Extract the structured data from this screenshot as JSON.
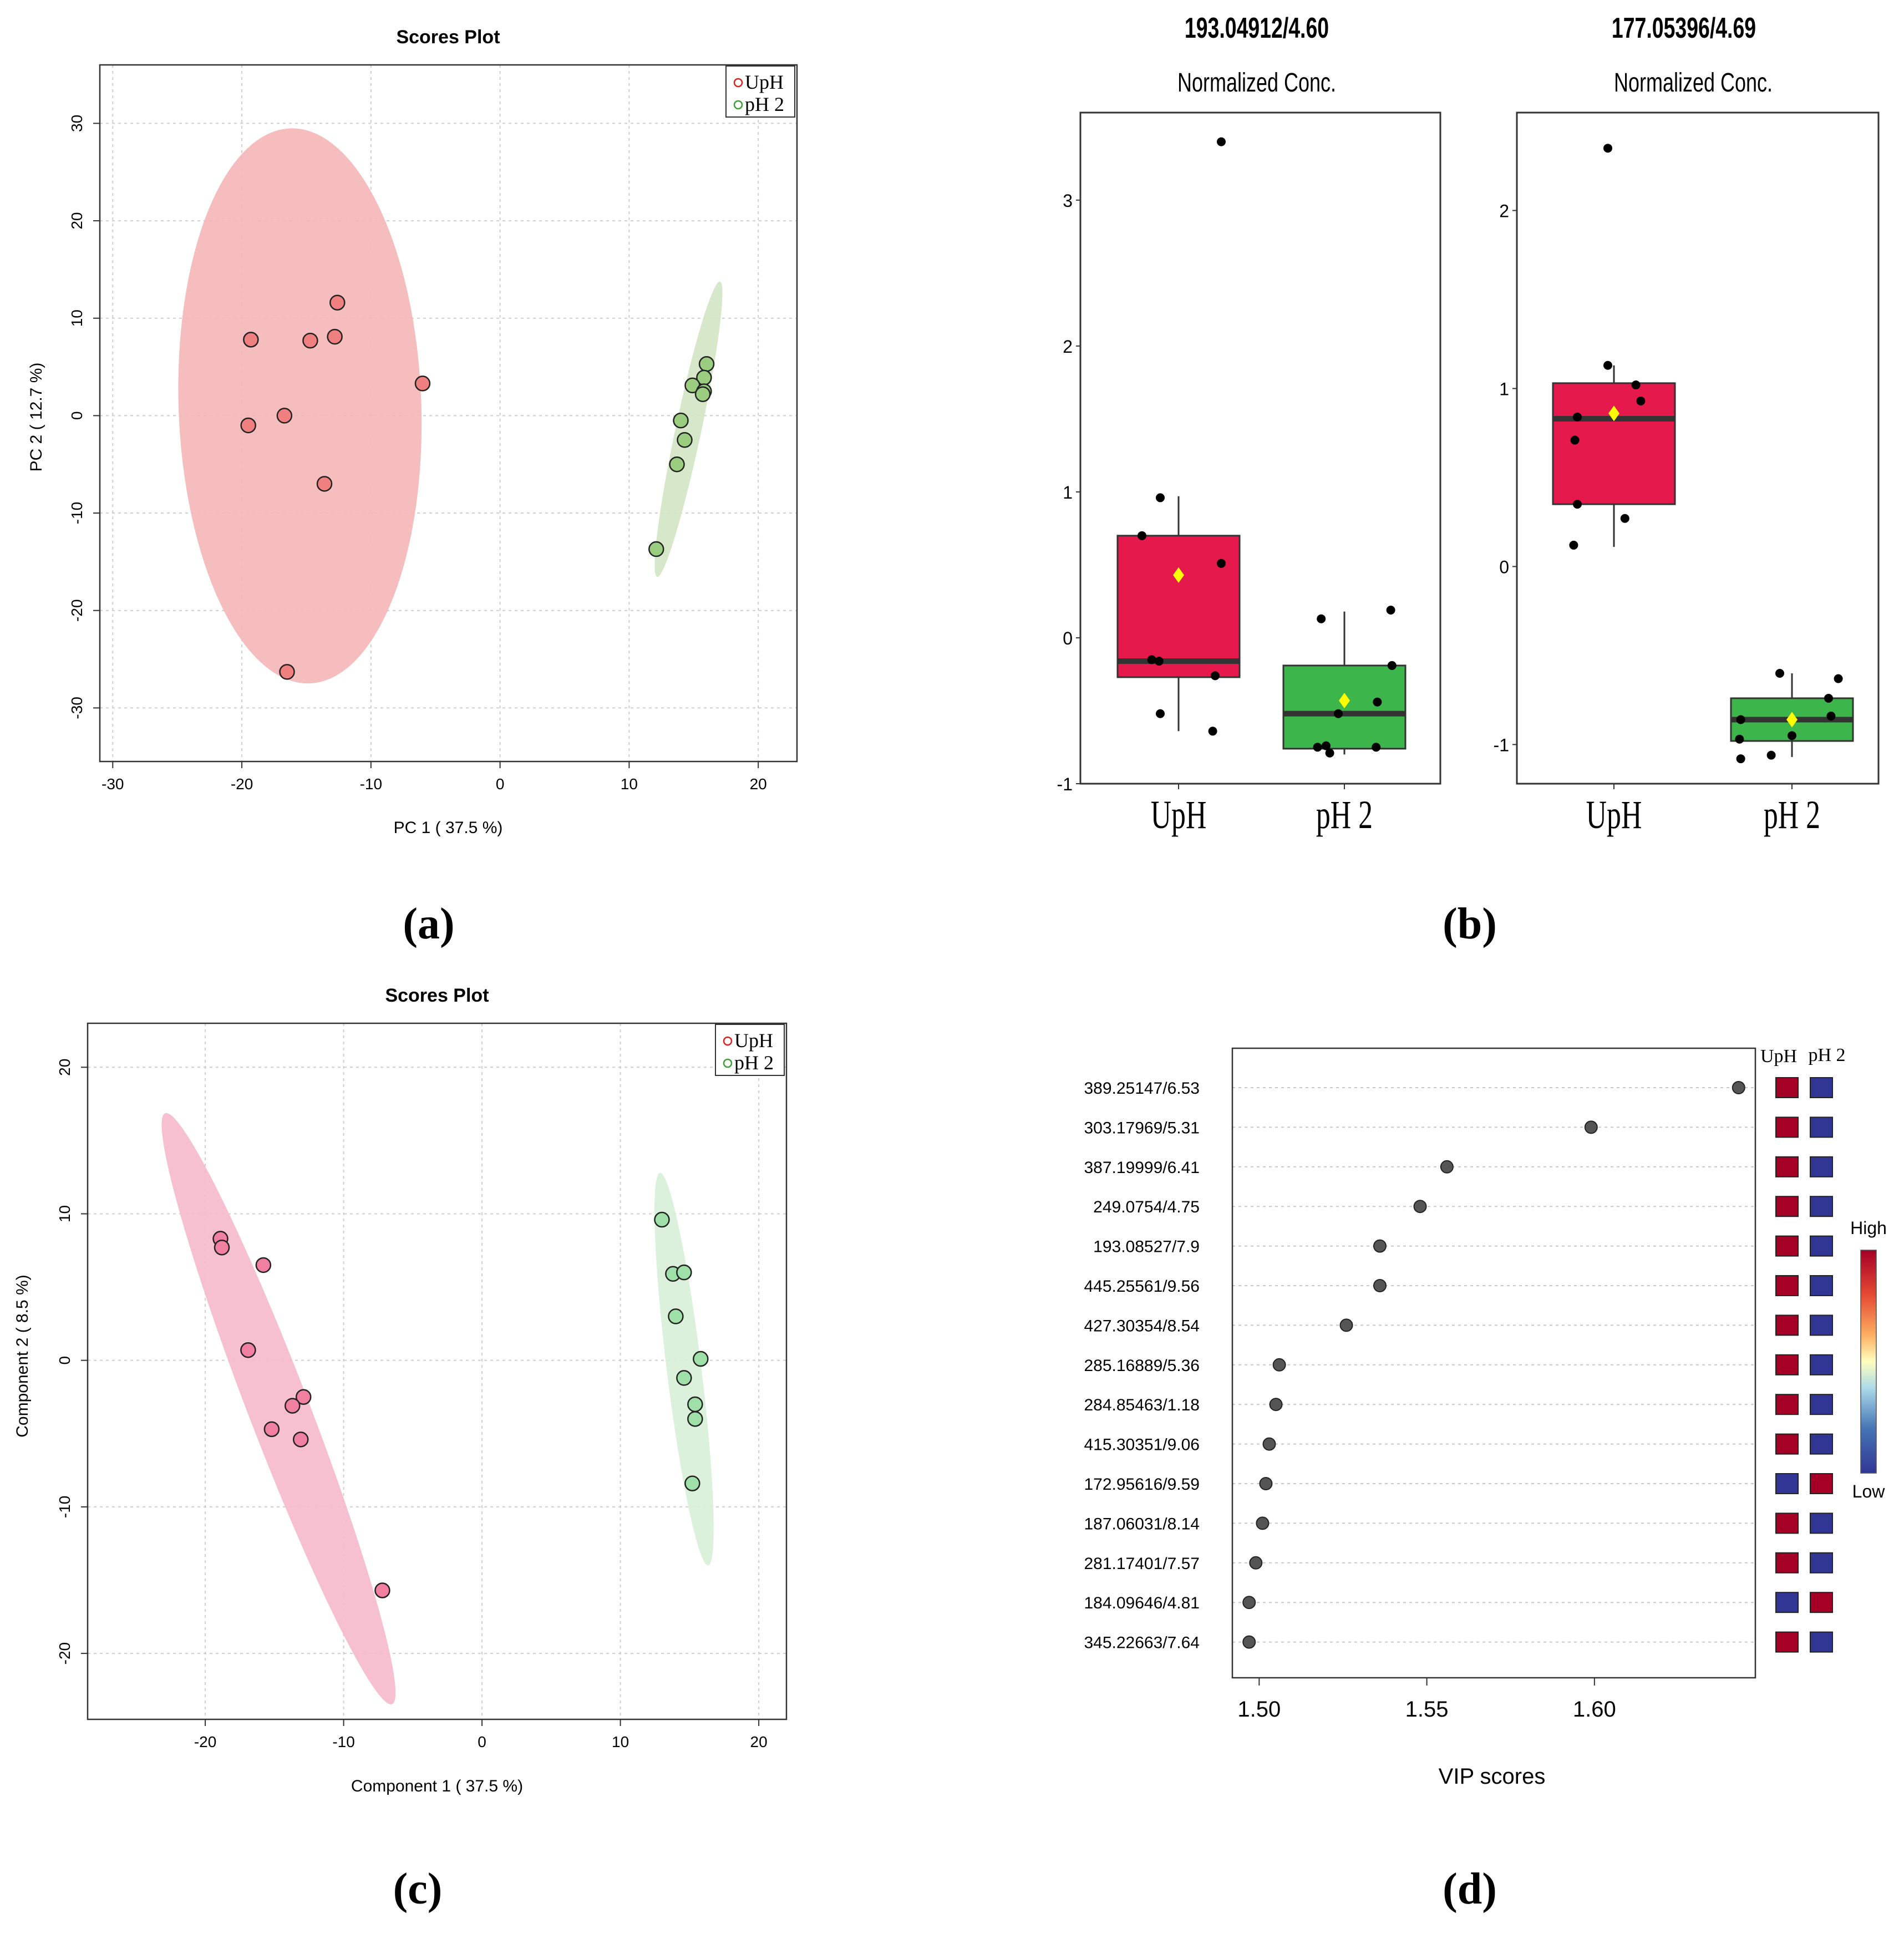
{
  "panel_labels": {
    "a": "(a)",
    "b": "(b)",
    "c": "(c)",
    "d": "(d)"
  },
  "colors": {
    "uph_fill": "#f08080",
    "uph_ellipse": "#f4b6b6",
    "ph2_fill": "#9acd80",
    "ph2_ellipse": "#d3e4c3",
    "uph_fill_c": "#f07fa0",
    "uph_ellipse_c": "#f6b9cc",
    "ph2_fill_c": "#9fe0a8",
    "ph2_ellipse_c": "#d8f0d8",
    "box_red": "#e5194b",
    "box_green": "#3cb54a",
    "mean_marker": "#ffff00",
    "heat_high": "#a50026",
    "heat_low": "#313695"
  },
  "chart_data": [
    {
      "id": "a",
      "type": "scatter",
      "title": "Scores Plot",
      "xlabel": "PC 1 ( 37.5 %)",
      "ylabel": "PC 2 ( 12.7 %)",
      "xlim": [
        -31,
        23
      ],
      "ylim": [
        -35.5,
        36
      ],
      "xticks": [
        -30,
        -20,
        -10,
        0,
        10,
        20
      ],
      "yticks": [
        -30,
        -20,
        -10,
        0,
        10,
        20,
        30
      ],
      "grid": true,
      "legend": "top-right",
      "series": [
        {
          "name": "UpH",
          "points": [
            [
              -12.6,
              11.6
            ],
            [
              -19.3,
              7.8
            ],
            [
              -14.7,
              7.7
            ],
            [
              -12.8,
              8.1
            ],
            [
              -6.0,
              3.3
            ],
            [
              -19.5,
              -1.0
            ],
            [
              -16.7,
              0.0
            ],
            [
              -13.6,
              -7.0
            ],
            [
              -16.5,
              -26.3
            ]
          ],
          "ellipse": {
            "cx": -15.5,
            "cy": 1.0,
            "rx": 9.4,
            "ry": 28.5,
            "angle": -2
          }
        },
        {
          "name": "pH 2",
          "points": [
            [
              16.0,
              5.3
            ],
            [
              15.8,
              3.9
            ],
            [
              14.9,
              3.1
            ],
            [
              15.8,
              2.5
            ],
            [
              15.7,
              2.2
            ],
            [
              14.0,
              -0.5
            ],
            [
              14.3,
              -2.5
            ],
            [
              13.7,
              -5.0
            ],
            [
              12.1,
              -13.7
            ]
          ],
          "ellipse": {
            "cx": 14.6,
            "cy": -1.4,
            "rx": 1.0,
            "ry": 15.5,
            "angle": 12
          }
        }
      ]
    },
    {
      "id": "b1",
      "type": "box",
      "title": "193.04912/4.60",
      "subtitle": "Normalized Conc.",
      "categories": [
        "UpH",
        "pH 2"
      ],
      "ylim": [
        -1.0,
        3.6
      ],
      "yticks": [
        -1,
        0,
        1,
        2,
        3
      ],
      "boxes": [
        {
          "name": "UpH",
          "q1": -0.27,
          "median": -0.16,
          "q3": 0.7,
          "whisker_low": -0.64,
          "whisker_high": 0.97,
          "mean": 0.43
        },
        {
          "name": "pH 2",
          "q1": -0.76,
          "median": -0.52,
          "q3": -0.19,
          "whisker_low": -0.8,
          "whisker_high": 0.18,
          "mean": -0.43
        }
      ],
      "points": [
        {
          "group": "UpH",
          "jitter": -0.3,
          "value": 0.7
        },
        {
          "group": "UpH",
          "jitter": -0.15,
          "value": 0.96
        },
        {
          "group": "UpH",
          "jitter": 0.35,
          "value": 3.4
        },
        {
          "group": "UpH",
          "jitter": 0.35,
          "value": 0.51
        },
        {
          "group": "UpH",
          "jitter": -0.22,
          "value": -0.15
        },
        {
          "group": "UpH",
          "jitter": -0.16,
          "value": -0.16
        },
        {
          "group": "UpH",
          "jitter": 0.3,
          "value": -0.26
        },
        {
          "group": "UpH",
          "jitter": -0.15,
          "value": -0.52
        },
        {
          "group": "UpH",
          "jitter": 0.28,
          "value": -0.64
        },
        {
          "group": "pH 2",
          "jitter": -0.19,
          "value": 0.13
        },
        {
          "group": "pH 2",
          "jitter": 0.38,
          "value": 0.19
        },
        {
          "group": "pH 2",
          "jitter": 0.39,
          "value": -0.19
        },
        {
          "group": "pH 2",
          "jitter": 0.27,
          "value": -0.44
        },
        {
          "group": "pH 2",
          "jitter": -0.05,
          "value": -0.52
        },
        {
          "group": "pH 2",
          "jitter": -0.22,
          "value": -0.75
        },
        {
          "group": "pH 2",
          "jitter": -0.15,
          "value": -0.74
        },
        {
          "group": "pH 2",
          "jitter": 0.26,
          "value": -0.75
        },
        {
          "group": "pH 2",
          "jitter": -0.12,
          "value": -0.79
        }
      ],
      "xtick_labels": [
        "UpH",
        "pH 2"
      ]
    },
    {
      "id": "b2",
      "type": "box",
      "title": "177.05396/4.69",
      "subtitle": "Normalized Conc.",
      "categories": [
        "UpH",
        "pH 2"
      ],
      "ylim": [
        -1.22,
        2.55
      ],
      "yticks": [
        -1,
        0,
        1,
        2
      ],
      "boxes": [
        {
          "name": "UpH",
          "q1": 0.35,
          "median": 0.83,
          "q3": 1.03,
          "whisker_low": 0.11,
          "whisker_high": 1.13,
          "mean": 0.86
        },
        {
          "name": "pH 2",
          "q1": -0.98,
          "median": -0.86,
          "q3": -0.74,
          "whisker_low": -1.07,
          "whisker_high": -0.6,
          "mean": -0.86
        }
      ],
      "points": [
        {
          "group": "UpH",
          "jitter": -0.05,
          "value": 2.35
        },
        {
          "group": "UpH",
          "jitter": -0.05,
          "value": 1.13
        },
        {
          "group": "UpH",
          "jitter": 0.18,
          "value": 1.02
        },
        {
          "group": "UpH",
          "jitter": 0.22,
          "value": 0.93
        },
        {
          "group": "UpH",
          "jitter": -0.3,
          "value": 0.84
        },
        {
          "group": "UpH",
          "jitter": -0.32,
          "value": 0.71
        },
        {
          "group": "UpH",
          "jitter": -0.3,
          "value": 0.35
        },
        {
          "group": "UpH",
          "jitter": 0.09,
          "value": 0.27
        },
        {
          "group": "UpH",
          "jitter": -0.33,
          "value": 0.12
        },
        {
          "group": "pH 2",
          "jitter": -0.1,
          "value": -0.6
        },
        {
          "group": "pH 2",
          "jitter": 0.38,
          "value": -0.63
        },
        {
          "group": "pH 2",
          "jitter": 0.3,
          "value": -0.74
        },
        {
          "group": "pH 2",
          "jitter": 0.32,
          "value": -0.84
        },
        {
          "group": "pH 2",
          "jitter": -0.42,
          "value": -0.86
        },
        {
          "group": "pH 2",
          "jitter": -0.43,
          "value": -0.97
        },
        {
          "group": "pH 2",
          "jitter": 0.0,
          "value": -0.95
        },
        {
          "group": "pH 2",
          "jitter": -0.42,
          "value": -1.08
        },
        {
          "group": "pH 2",
          "jitter": -0.17,
          "value": -1.06
        }
      ],
      "xtick_labels": [
        "UpH",
        "pH 2"
      ]
    },
    {
      "id": "c",
      "type": "scatter",
      "title": "Scores Plot",
      "xlabel": "Component 1 ( 37.5 %)",
      "ylabel": "Component 2 ( 8.5 %)",
      "xlim": [
        -28.5,
        22
      ],
      "ylim": [
        -24.5,
        23
      ],
      "xticks": [
        -20,
        -10,
        0,
        10,
        20
      ],
      "yticks": [
        -20,
        -10,
        0,
        10,
        20
      ],
      "grid": true,
      "legend": "top-right",
      "series": [
        {
          "name": "UpH",
          "points": [
            [
              -18.9,
              8.3
            ],
            [
              -18.8,
              7.7
            ],
            [
              -15.8,
              6.5
            ],
            [
              -16.9,
              0.7
            ],
            [
              -12.9,
              -2.5
            ],
            [
              -13.7,
              -3.1
            ],
            [
              -15.2,
              -4.7
            ],
            [
              -13.1,
              -5.4
            ],
            [
              -7.2,
              -15.7
            ]
          ],
          "ellipse": {
            "cx": -14.7,
            "cy": -3.3,
            "rx": 2.2,
            "ry": 21.6,
            "angle": -21
          }
        },
        {
          "name": "pH 2",
          "points": [
            [
              13.0,
              9.6
            ],
            [
              13.8,
              5.9
            ],
            [
              14.6,
              6.0
            ],
            [
              14.0,
              3.0
            ],
            [
              15.8,
              0.1
            ],
            [
              14.6,
              -1.2
            ],
            [
              15.4,
              -3.0
            ],
            [
              15.4,
              -4.0
            ],
            [
              15.2,
              -8.4
            ]
          ],
          "ellipse": {
            "cx": 14.6,
            "cy": -0.6,
            "rx": 1.25,
            "ry": 13.5,
            "angle": -7
          }
        }
      ]
    },
    {
      "id": "d",
      "type": "dot",
      "xlabel": "VIP scores",
      "xlim": [
        1.492,
        1.648
      ],
      "xticks": [
        1.5,
        1.55,
        1.6
      ],
      "xtick_labels": [
        "1.50",
        "1.55",
        "1.60"
      ],
      "heatmap_columns": [
        "UpH",
        "pH 2"
      ],
      "colorbar_labels": {
        "high": "High",
        "low": "Low"
      },
      "features": [
        {
          "label": "389.25147/6.53",
          "vip": 1.643,
          "uph": "high",
          "ph2": "low"
        },
        {
          "label": "303.17969/5.31",
          "vip": 1.599,
          "uph": "high",
          "ph2": "low"
        },
        {
          "label": "387.19999/6.41",
          "vip": 1.556,
          "uph": "high",
          "ph2": "low"
        },
        {
          "label": "249.0754/4.75",
          "vip": 1.548,
          "uph": "high",
          "ph2": "low"
        },
        {
          "label": "193.08527/7.9",
          "vip": 1.536,
          "uph": "high",
          "ph2": "low"
        },
        {
          "label": "445.25561/9.56",
          "vip": 1.536,
          "uph": "high",
          "ph2": "low"
        },
        {
          "label": "427.30354/8.54",
          "vip": 1.526,
          "uph": "high",
          "ph2": "low"
        },
        {
          "label": "285.16889/5.36",
          "vip": 1.506,
          "uph": "high",
          "ph2": "low"
        },
        {
          "label": "284.85463/1.18",
          "vip": 1.505,
          "uph": "high",
          "ph2": "low"
        },
        {
          "label": "415.30351/9.06",
          "vip": 1.503,
          "uph": "high",
          "ph2": "low"
        },
        {
          "label": "172.95616/9.59",
          "vip": 1.502,
          "uph": "low",
          "ph2": "high"
        },
        {
          "label": "187.06031/8.14",
          "vip": 1.501,
          "uph": "high",
          "ph2": "low"
        },
        {
          "label": "281.17401/7.57",
          "vip": 1.499,
          "uph": "high",
          "ph2": "low"
        },
        {
          "label": "184.09646/4.81",
          "vip": 1.497,
          "uph": "low",
          "ph2": "high"
        },
        {
          "label": "345.22663/7.64",
          "vip": 1.497,
          "uph": "high",
          "ph2": "low"
        }
      ]
    }
  ]
}
